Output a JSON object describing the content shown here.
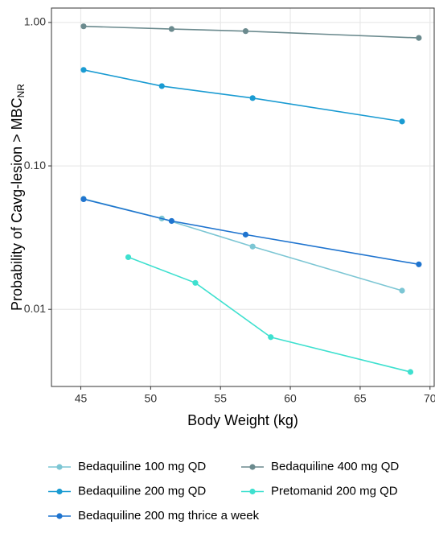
{
  "chart_data": {
    "type": "line",
    "xlabel": "Body Weight (kg)",
    "ylabel": "Probability of Cavg-lesion > MBC",
    "ylabel_subscript": "NR",
    "log_y": true,
    "grid": true,
    "legend": "bottom",
    "xlim": [
      42.9,
      70.3
    ],
    "ylim": [
      0.0029,
      1.26
    ],
    "xticks": [
      45,
      50,
      55,
      60,
      65,
      70
    ],
    "yticks": [
      {
        "value": 1,
        "label": "1.00"
      },
      {
        "value": 0.1,
        "label": "0.10"
      },
      {
        "value": 0.01,
        "label": "0.01"
      }
    ],
    "series": [
      {
        "name": "Bedaquiline 100 mg QD",
        "color": "#7cc6d4",
        "x": [
          45.2,
          50.8,
          57.3,
          68.0
        ],
        "values": [
          0.059,
          0.043,
          0.0274,
          0.0135
        ]
      },
      {
        "name": "Bedaquiline 200 mg QD",
        "color": "#1a9bd2",
        "x": [
          45.2,
          50.8,
          57.3,
          68.0
        ],
        "values": [
          0.467,
          0.36,
          0.297,
          0.204
        ]
      },
      {
        "name": "Bedaquiline 200 mg thrice a week",
        "color": "#1f74cf",
        "x": [
          45.2,
          51.5,
          56.8,
          69.2
        ],
        "values": [
          0.0586,
          0.0413,
          0.0332,
          0.0206
        ]
      },
      {
        "name": "Bedaquiline 400 mg QD",
        "color": "#6b8a8e",
        "x": [
          45.2,
          51.5,
          56.8,
          69.2
        ],
        "values": [
          0.94,
          0.9,
          0.87,
          0.78
        ]
      },
      {
        "name": "Pretomanid 200 mg  QD",
        "color": "#3ee0cf",
        "x": [
          48.4,
          53.2,
          58.6,
          68.6
        ],
        "values": [
          0.0231,
          0.0153,
          0.0064,
          0.00366
        ]
      }
    ]
  }
}
